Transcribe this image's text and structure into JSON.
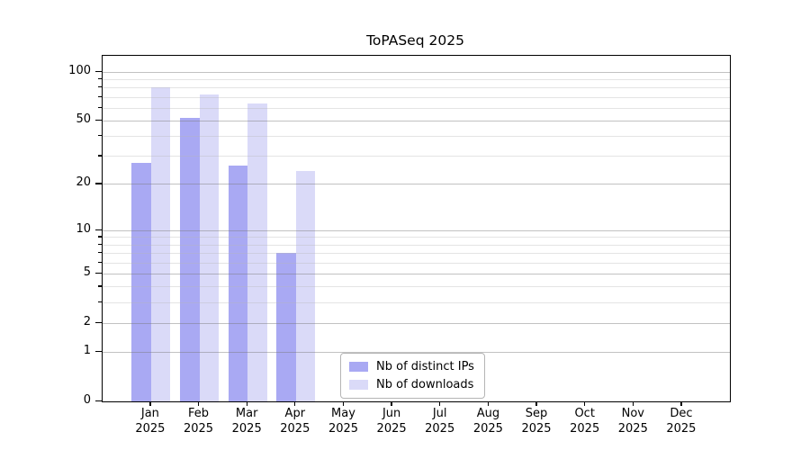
{
  "chart_data": {
    "type": "bar",
    "title": "ToPASeq 2025",
    "xlabel": "",
    "ylabel": "",
    "year": "2025",
    "months": [
      "Jan",
      "Feb",
      "Mar",
      "Apr",
      "May",
      "Jun",
      "Jul",
      "Aug",
      "Sep",
      "Oct",
      "Nov",
      "Dec"
    ],
    "categories": [
      "Jan 2025",
      "Feb 2025",
      "Mar 2025",
      "Apr 2025",
      "May 2025",
      "Jun 2025",
      "Jul 2025",
      "Aug 2025",
      "Sep 2025",
      "Oct 2025",
      "Nov 2025",
      "Dec 2025"
    ],
    "series": [
      {
        "name": "Nb of distinct IPs",
        "color": "#a9a9f3",
        "values": [
          27,
          52,
          26,
          7,
          null,
          null,
          null,
          null,
          null,
          null,
          null,
          null
        ]
      },
      {
        "name": "Nb of downloads",
        "color": "#dadaf8",
        "values": [
          80,
          72,
          64,
          24,
          null,
          null,
          null,
          null,
          null,
          null,
          null,
          null
        ]
      }
    ],
    "y_axis": {
      "scale": "log1p",
      "ticks": [
        0,
        1,
        2,
        5,
        10,
        20,
        50,
        100
      ],
      "minor_ticks": [
        3,
        4,
        6,
        7,
        8,
        9,
        30,
        40,
        60,
        70,
        80,
        90
      ],
      "max": 125
    },
    "grid": "horizontal major+minor, drawn over bars",
    "legend_position": "lower center",
    "colors": {
      "spine": "#000000",
      "major_grid": "#cacaca",
      "minor_grid": "#e9e9e9",
      "background": "#ffffff"
    }
  }
}
